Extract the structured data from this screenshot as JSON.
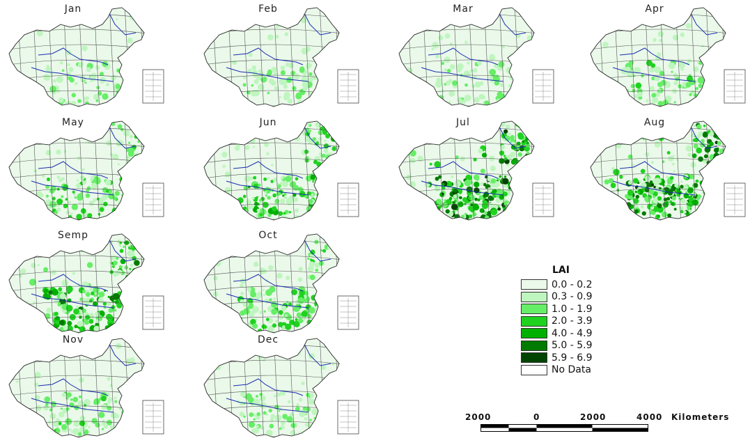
{
  "months": [
    "Jan",
    "Feb",
    "Mar",
    "Apr",
    "May",
    "Jun",
    "Jul",
    "Aug",
    "Semp",
    "Oct",
    "Nov",
    "Dec"
  ],
  "map_levels": [
    0.1,
    0.1,
    0.12,
    0.18,
    0.28,
    0.4,
    0.72,
    0.68,
    0.55,
    0.3,
    0.2,
    0.16
  ],
  "legend": {
    "title": "LAI",
    "classes": [
      {
        "label": "0.0 - 0.2",
        "color": "#eaf9ea"
      },
      {
        "label": "0.3 - 0.9",
        "color": "#bff5bf"
      },
      {
        "label": "1.0 - 1.9",
        "color": "#66ee66"
      },
      {
        "label": "2.0 - 3.9",
        "color": "#1fd21f"
      },
      {
        "label": "4.0 - 4.9",
        "color": "#00b000"
      },
      {
        "label": "5.0 - 5.9",
        "color": "#007a00"
      },
      {
        "label": "5.9 - 6.9",
        "color": "#004400"
      },
      {
        "label": "No Data",
        "color": "#ffffff"
      }
    ]
  },
  "scale_bar": {
    "labels": [
      "2000",
      "0",
      "2000",
      "4000"
    ],
    "unit": "Kilometers"
  },
  "colors": {
    "river": "#1a2bb0",
    "grid": "#555555",
    "border": "#333333"
  }
}
